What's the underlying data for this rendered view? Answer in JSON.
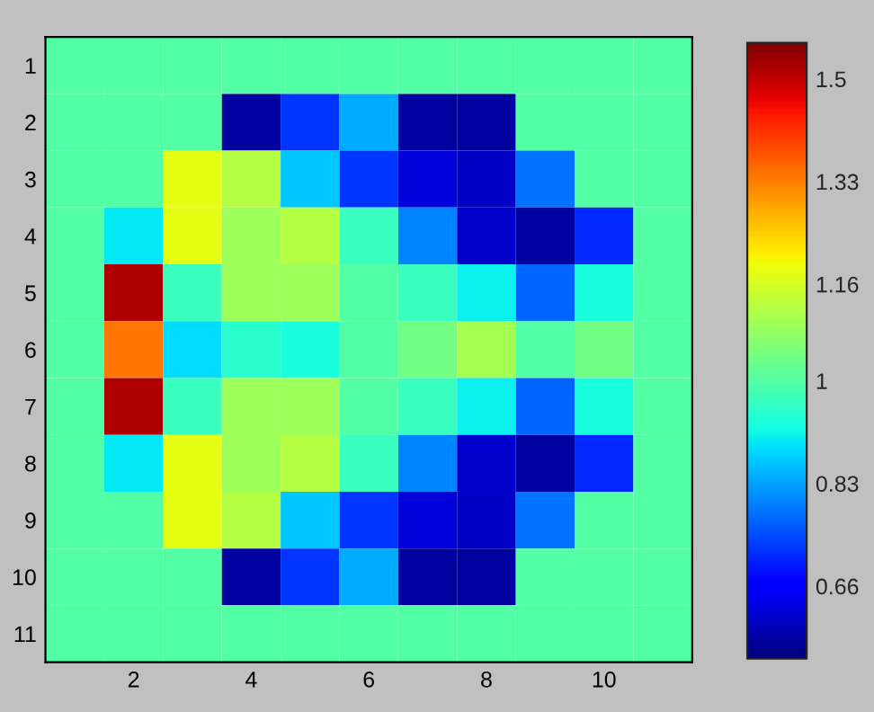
{
  "chart_data": {
    "type": "heatmap",
    "categories": [
      null,
      "2",
      null,
      "4",
      null,
      "6",
      null,
      "8",
      null,
      "10",
      null
    ],
    "y_categories": [
      "1",
      "2",
      "3",
      "4",
      "5",
      "6",
      "7",
      "8",
      "9",
      "10",
      "11"
    ],
    "cells": [
      [
        1,
        1,
        1,
        1,
        1,
        1,
        1,
        1,
        1,
        1,
        1
      ],
      [
        1,
        1,
        1,
        0.57,
        0.72,
        0.84,
        0.57,
        0.57,
        1,
        1,
        1
      ],
      [
        1,
        1,
        1.18,
        1.12,
        0.87,
        0.72,
        0.62,
        0.6,
        0.785,
        1,
        1
      ],
      [
        1,
        0.9,
        1.18,
        1.09,
        1.12,
        0.97,
        0.8,
        0.61,
        0.57,
        0.71,
        1
      ],
      [
        1,
        1.52,
        0.97,
        1.09,
        1.09,
        1.0,
        0.97,
        0.91,
        0.77,
        0.93,
        1
      ],
      [
        1,
        1.34,
        0.89,
        0.95,
        0.93,
        1.0,
        1.04,
        1.1,
        1.0,
        1.04,
        1
      ],
      [
        1,
        1.52,
        0.97,
        1.09,
        1.09,
        1.0,
        0.97,
        0.91,
        0.77,
        0.93,
        1
      ],
      [
        1,
        0.9,
        1.18,
        1.09,
        1.12,
        0.97,
        0.8,
        0.61,
        0.57,
        0.71,
        1
      ],
      [
        1,
        1,
        1.18,
        1.12,
        0.87,
        0.72,
        0.62,
        0.6,
        0.785,
        1,
        1
      ],
      [
        1,
        1,
        1,
        0.57,
        0.72,
        0.84,
        0.57,
        0.57,
        1,
        1,
        1
      ],
      [
        1,
        1,
        1,
        1,
        1,
        1,
        1,
        1,
        1,
        1,
        1
      ]
    ],
    "clim": [
      0.54,
      1.56
    ],
    "cticks": [
      0.66,
      0.83,
      1,
      1.16,
      1.33,
      1.5
    ],
    "grid": false
  }
}
